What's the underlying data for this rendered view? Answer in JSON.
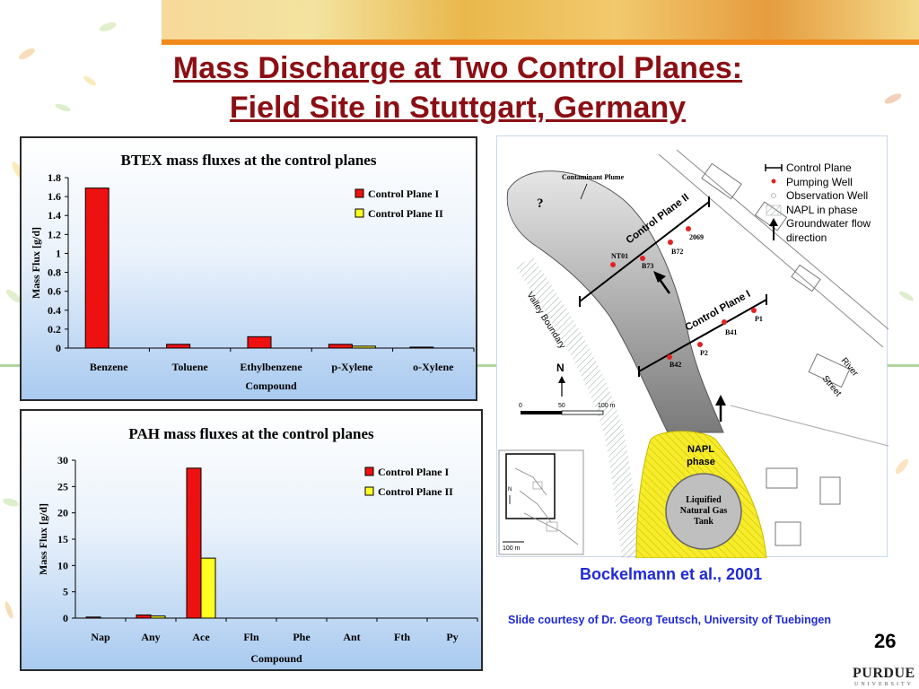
{
  "slide": {
    "title_line1": "Mass Discharge at Two Control Planes:",
    "title_line2": "Field Site in Stuttgart, Germany",
    "citation": "Bockelmann et al., 2001",
    "courtesy": "Slide courtesy of Dr. Georg Teutsch, University of Tuebingen",
    "page_number": "26",
    "logo_text": "PURDUE",
    "logo_subtext": "UNIVERSITY"
  },
  "colors": {
    "title": "#8b0f14",
    "control_plane_1": "#ee1111",
    "control_plane_2": "#ffff22",
    "citation": "#1f2ad6",
    "napl": "#f6ec2a"
  },
  "chart_data": [
    {
      "type": "bar",
      "title": "BTEX mass fluxes at the control planes",
      "xlabel": "Compound",
      "ylabel": "Mass Flux [g/d]",
      "ylim": [
        0,
        1.8
      ],
      "yticks": [
        "0",
        "0.2",
        "0.4",
        "0.6",
        "0.8",
        "1",
        "1.2",
        "1.4",
        "1.6",
        "1.8"
      ],
      "categories": [
        "Benzene",
        "Toluene",
        "Ethylbenzene",
        "p-Xylene",
        "o-Xylene"
      ],
      "series": [
        {
          "name": "Control Plane I",
          "values": [
            1.69,
            0.04,
            0.12,
            0.04,
            0.01
          ]
        },
        {
          "name": "Control Plane II",
          "values": [
            0,
            0,
            0,
            0.02,
            0
          ]
        }
      ],
      "legend": "top-right",
      "grid": false
    },
    {
      "type": "bar",
      "title": "PAH mass fluxes at the control planes",
      "xlabel": "Compound",
      "ylabel": "Mass Flux [g/d]",
      "ylim": [
        0,
        30
      ],
      "yticks": [
        "0",
        "5",
        "10",
        "15",
        "20",
        "25",
        "30"
      ],
      "categories": [
        "Nap",
        "Any",
        "Ace",
        "Fln",
        "Phe",
        "Ant",
        "Fth",
        "Py"
      ],
      "series": [
        {
          "name": "Control Plane I",
          "values": [
            0.2,
            0.6,
            28.5,
            0,
            0,
            0,
            0,
            0
          ]
        },
        {
          "name": "Control Plane II",
          "values": [
            0,
            0.4,
            11.4,
            0,
            0,
            0,
            0,
            0
          ]
        }
      ],
      "legend": "top-right",
      "grid": false
    }
  ],
  "map": {
    "contaminant_plume_label": "Contaminant Plume",
    "question_mark": "?",
    "control_plane_1_label": "Control Plane I",
    "control_plane_2_label": "Control Plane II",
    "valley_boundary_label": "Valley Boundary",
    "river_street_label_1": "River",
    "river_street_label_2": "Street",
    "north_label": "N",
    "napl_label_1": "NAPL",
    "napl_label_2": "phase",
    "tank_label_1": "Liquified",
    "tank_label_2": "Natural Gas",
    "tank_label_3": "Tank",
    "scale_labels": [
      "0",
      "50",
      "100 m"
    ],
    "inset_scale_label": "100 m",
    "inset_north_label": "N",
    "wells": [
      "NT01",
      "B73",
      "B72",
      "2069",
      "B42",
      "P2",
      "B41",
      "P1"
    ],
    "legend": [
      {
        "icon": "control-plane-icon",
        "label": "Control Plane"
      },
      {
        "icon": "pumping-well-icon",
        "label": "Pumping Well"
      },
      {
        "icon": "observation-well-icon",
        "label": "Observation Well"
      },
      {
        "icon": "napl-phase-icon",
        "label": "NAPL  in phase"
      },
      {
        "icon": "groundwater-arrow-icon",
        "label": "Groundwater flow direction"
      }
    ]
  }
}
